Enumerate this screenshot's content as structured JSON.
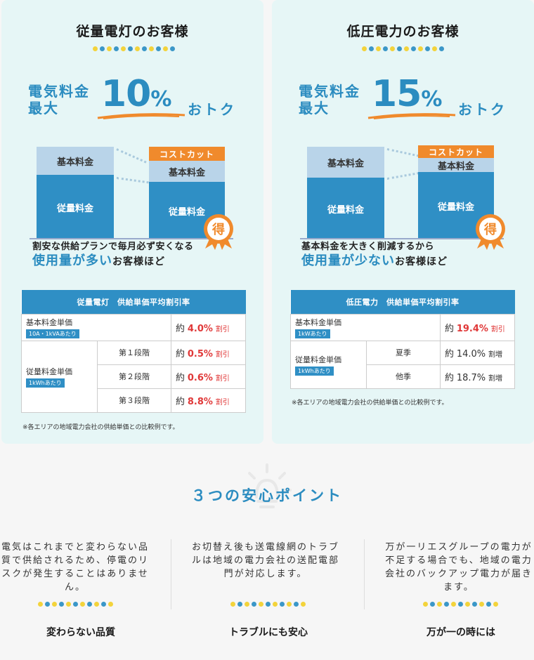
{
  "left": {
    "title": "従量電灯のお客様",
    "promo_line1": "電気料金",
    "promo_line2": "最大",
    "promo_pct": "10",
    "promo_pct_unit": "%",
    "promo_suffix": "おトク",
    "bar_base_label": "基本料金",
    "bar_meter_label": "従量料金",
    "bar_cut_label": "コストカット",
    "badge_char": "得",
    "caption1": "割安な供給プランで毎月必ず安くなる",
    "caption2_hl": "使用量が多い",
    "caption2_rest": "お客様ほど",
    "table_header": "従量電灯　供給単価平均割引率",
    "row_base_label": "基本料金単価",
    "row_base_tag": "10A・1kVAあたり",
    "row_base_prefix": "約",
    "row_base_value": "4.0%",
    "row_base_suffix": "割引",
    "row_meter_label": "従量料金単価",
    "row_meter_tag": "1kWhあたり",
    "tiers": [
      {
        "name": "第１段階",
        "prefix": "約",
        "value": "0.5%",
        "suffix": "割引"
      },
      {
        "name": "第２段階",
        "prefix": "約",
        "value": "0.6%",
        "suffix": "割引"
      },
      {
        "name": "第３段階",
        "prefix": "約",
        "value": "8.8%",
        "suffix": "割引"
      }
    ],
    "note": "※各エリアの地域電力会社の供給単価との比較例です。"
  },
  "right": {
    "title": "低圧電力のお客様",
    "promo_line1": "電気料金",
    "promo_line2": "最大",
    "promo_pct": "15",
    "promo_pct_unit": "%",
    "promo_suffix": "おトク",
    "bar_base_label": "基本料金",
    "bar_meter_label": "従量料金",
    "bar_cut_label": "コストカット",
    "badge_char": "得",
    "caption1": "基本料金を大きく削減するから",
    "caption2_hl": "使用量が少ない",
    "caption2_rest": "お客様ほど",
    "table_header": "低圧電力　供給単価平均割引率",
    "row_base_label": "基本料金単価",
    "row_base_tag": "1kWあたり",
    "row_base_prefix": "約",
    "row_base_value": "19.4%",
    "row_base_suffix": "割引",
    "row_meter_label": "従量料金単価",
    "row_meter_tag": "1kWhあたり",
    "seasons": [
      {
        "name": "夏季",
        "prefix": "約",
        "value": "14.0%",
        "suffix": "割増"
      },
      {
        "name": "他季",
        "prefix": "約",
        "value": "18.7%",
        "suffix": "割増"
      }
    ],
    "note": "※各エリアの地域電力会社の供給単価との比較例です。"
  },
  "points": {
    "title": "３つの安心ポイント",
    "items": [
      {
        "text": "電気はこれまでと変わらない品質で供給されるため、停電のリスクが発生することはありません。",
        "label": "変わらない品質"
      },
      {
        "text": "お切替え後も送電線網のトラブルは地域の電力会社の送配電部門が対応します。",
        "label": "トラブルにも安心"
      },
      {
        "text": "万が一リエスグループの電力が不足する場合でも、地域の電力会社のバックアップ電力が届きます。",
        "label": "万が一の時には"
      }
    ]
  },
  "colors": {
    "accent_blue": "#2f8fc5",
    "accent_orange": "#f08a2c",
    "dot_yellow": "#f3d33b",
    "card_bg": "#e6f6f6",
    "red": "#e03838"
  }
}
